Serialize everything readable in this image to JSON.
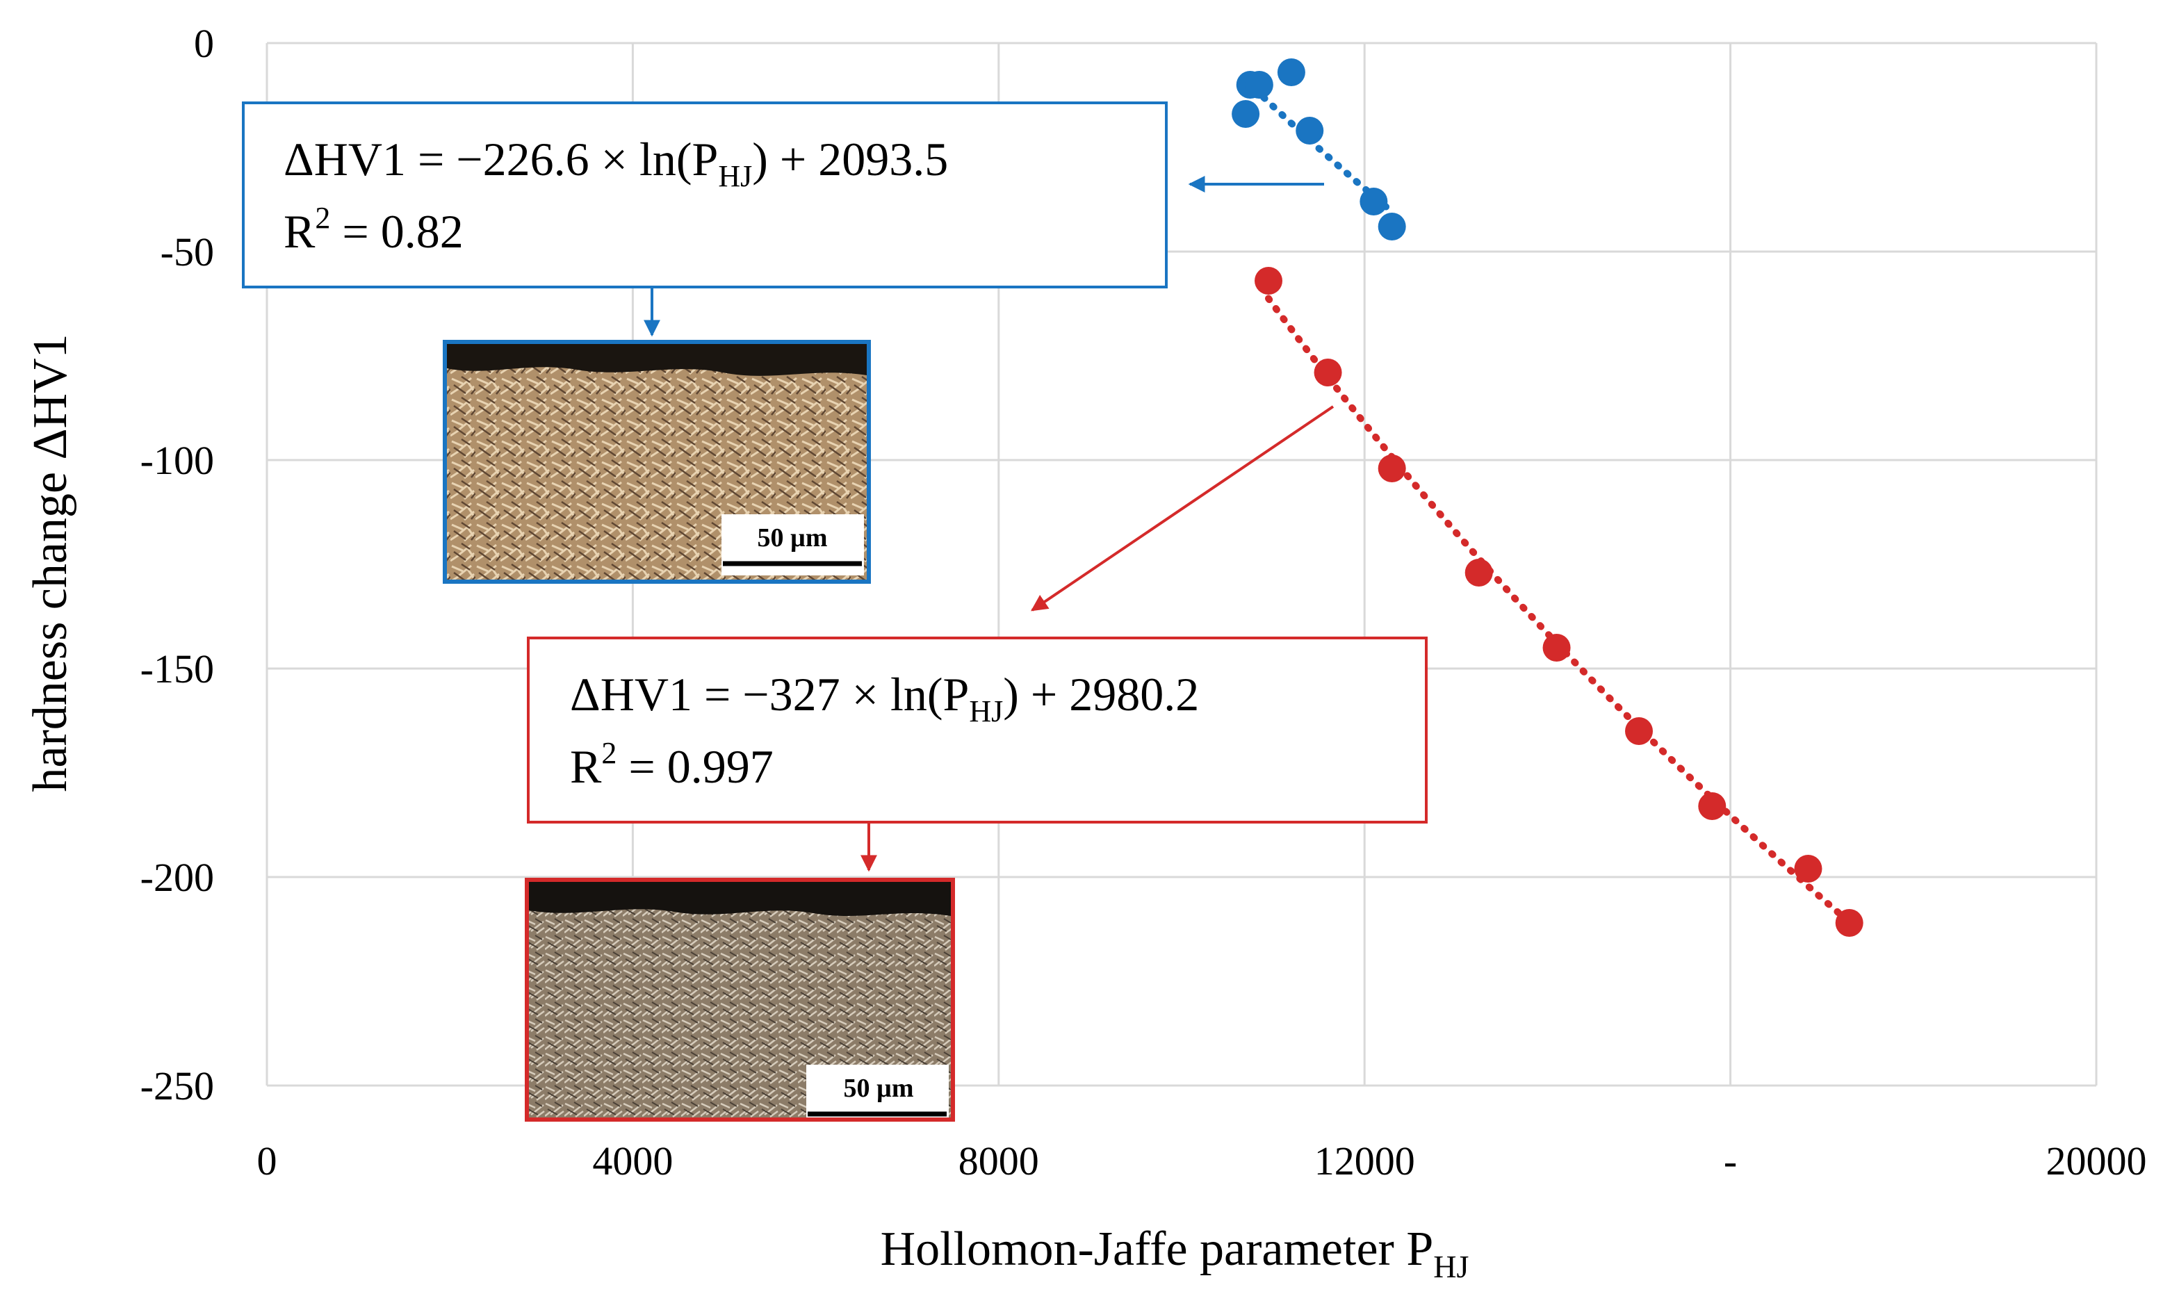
{
  "chart_data": {
    "type": "scatter",
    "title": "",
    "xlabel": "Hollomon-Jaffe parameter P",
    "xlabel_subscript": "HJ",
    "ylabel": "hardness change ΔHV1",
    "xlim": [
      0,
      20000
    ],
    "ylim": [
      -250,
      0
    ],
    "x_ticks": [
      {
        "value": 0,
        "label": "0"
      },
      {
        "value": 4000,
        "label": "4000"
      },
      {
        "value": 8000,
        "label": "8000"
      },
      {
        "value": 12000,
        "label": "12000"
      },
      {
        "value": 16000,
        "label": "-"
      },
      {
        "value": 20000,
        "label": "20000"
      }
    ],
    "y_ticks": [
      {
        "value": 0,
        "label": "0"
      },
      {
        "value": -50,
        "label": "-50"
      },
      {
        "value": -100,
        "label": "-100"
      },
      {
        "value": -150,
        "label": "-150"
      },
      {
        "value": -200,
        "label": "-200"
      },
      {
        "value": -250,
        "label": "-250"
      }
    ],
    "grid": true,
    "series": [
      {
        "color": "#1a75c2",
        "trend": {
          "a": -226.6,
          "b": 2093.5
        },
        "points": [
          {
            "x": 10750,
            "y": -10
          },
          {
            "x": 10850,
            "y": -10
          },
          {
            "x": 10700,
            "y": -17
          },
          {
            "x": 11200,
            "y": -7
          },
          {
            "x": 11400,
            "y": -21
          },
          {
            "x": 12100,
            "y": -38
          },
          {
            "x": 12300,
            "y": -44
          }
        ],
        "annotation": {
          "equation_prefix": "ΔHV1 = −226.6 × ln(P",
          "equation_sub": "HJ",
          "equation_suffix": ") + 2093.5",
          "r2_prefix": "R",
          "r2_sup": "2",
          "r2_value": " = 0.82"
        },
        "scale_bar": "50 µm"
      },
      {
        "color": "#d42a2a",
        "trend": {
          "a": -327,
          "b": 2980.2
        },
        "points": [
          {
            "x": 10950,
            "y": -57
          },
          {
            "x": 11600,
            "y": -79
          },
          {
            "x": 12300,
            "y": -102
          },
          {
            "x": 13250,
            "y": -127
          },
          {
            "x": 14100,
            "y": -145
          },
          {
            "x": 15000,
            "y": -165
          },
          {
            "x": 15800,
            "y": -183
          },
          {
            "x": 16850,
            "y": -198
          },
          {
            "x": 17300,
            "y": -211
          }
        ],
        "annotation": {
          "equation_prefix": "ΔHV1 = −327 × ln(P",
          "equation_sub": "HJ",
          "equation_suffix": ") + 2980.2",
          "r2_prefix": "R",
          "r2_sup": "2",
          "r2_value": " = 0.997"
        },
        "scale_bar": "50 µm"
      }
    ]
  }
}
